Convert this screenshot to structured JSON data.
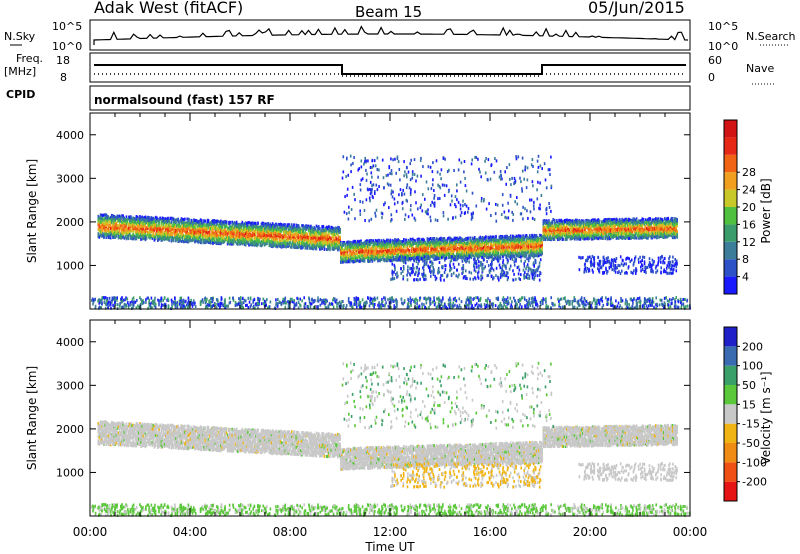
{
  "header": {
    "station": "Adak West (fitACF)",
    "beam": "Beam 15",
    "date": "05/Jun/2015"
  },
  "top_panels": {
    "nsky_label": "N.Sky",
    "nsky_ticks": [
      "10^5",
      "10^0"
    ],
    "nsky_right_ticks": [
      "10^5",
      "10^0"
    ],
    "nsearch_label": "N.Search",
    "freq_label_1": "Freq.",
    "freq_label_2": "[MHz]",
    "freq_ticks": [
      "18",
      "8"
    ],
    "nave_label": "Nave",
    "nave_ticks": [
      "60",
      "0"
    ],
    "cpid_label": "CPID",
    "cpid_text": "normalsound (fast) 157 RF"
  },
  "chart_data": [
    {
      "type": "heatmap",
      "panel": "power",
      "xlabel": "",
      "ylabel": "Slant Range [km]",
      "x_ticks": [
        "00:00",
        "04:00",
        "08:00",
        "12:00",
        "16:00",
        "20:00",
        "00:00"
      ],
      "xlim": [
        0,
        24
      ],
      "y_ticks": [
        "1000",
        "2000",
        "3000",
        "4000"
      ],
      "ylim": [
        0,
        4500
      ],
      "colorbar_label": "Power [dB]",
      "colorbar_ticks": [
        "4",
        "8",
        "12",
        "16",
        "20",
        "24",
        "28"
      ],
      "colorbar_colors": [
        "#1a1aff",
        "#2d52c8",
        "#3c7d9a",
        "#3a9c6a",
        "#50c040",
        "#c8c828",
        "#f0a01e",
        "#f06414",
        "#e62814",
        "#d21414"
      ],
      "bands": [
        {
          "t0": 0.3,
          "t1": 10.0,
          "r0": 1900,
          "r1": 1600,
          "width": 330
        },
        {
          "t0": 10.0,
          "t1": 18.1,
          "r0": 1300,
          "r1": 1450,
          "width": 300
        },
        {
          "t0": 18.1,
          "t1": 23.5,
          "r0": 1800,
          "r1": 1850,
          "width": 280
        }
      ]
    },
    {
      "type": "heatmap",
      "panel": "velocity",
      "xlabel": "Time UT",
      "ylabel": "Slant Range [km]",
      "x_ticks": [
        "00:00",
        "04:00",
        "08:00",
        "12:00",
        "16:00",
        "20:00",
        "00:00"
      ],
      "xlim": [
        0,
        24
      ],
      "y_ticks": [
        "1000",
        "2000",
        "3000",
        "4000"
      ],
      "ylim": [
        0,
        4500
      ],
      "colorbar_label": "Velocity [m s⁻¹]",
      "colorbar_ticks": [
        "200",
        "100",
        "50",
        "15",
        "-15",
        "-50",
        "-100",
        "-200"
      ],
      "colorbar_colors": [
        "#2020c8",
        "#3a6ab0",
        "#3aa06a",
        "#5ac83a",
        "#c8c8c8",
        "#f0b414",
        "#f08c14",
        "#f05014",
        "#e61414"
      ]
    }
  ]
}
